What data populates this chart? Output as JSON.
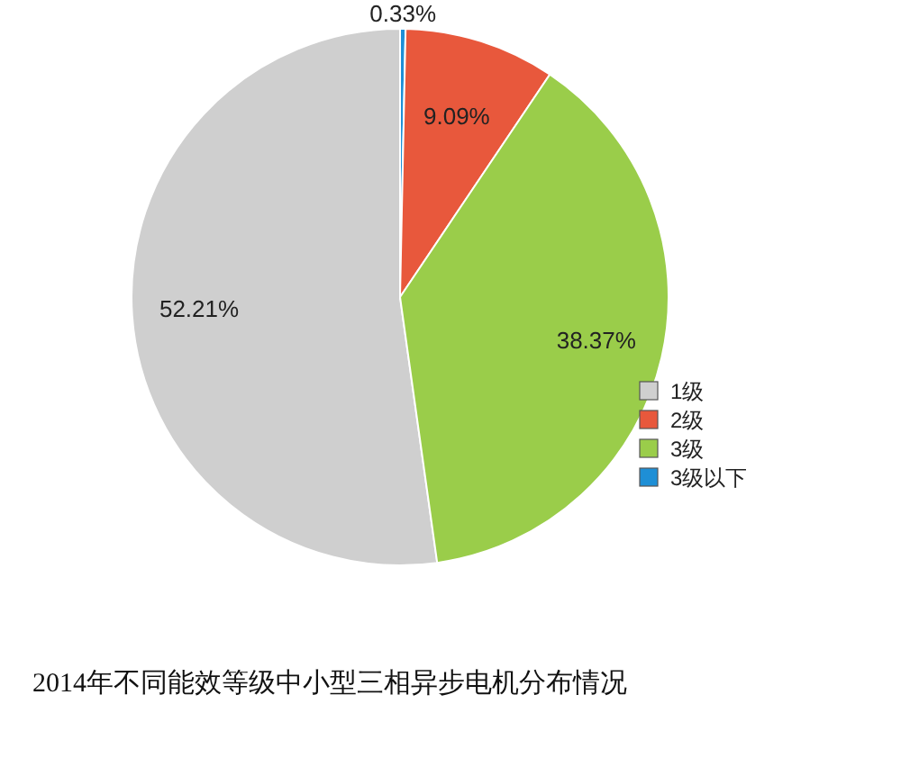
{
  "chart_data": {
    "type": "pie",
    "title": "2014年不同能效等级中小型三相异步电机分布情况",
    "categories": [
      "1级",
      "2级",
      "3级",
      "3级以下"
    ],
    "values": [
      52.21,
      9.09,
      38.37,
      0.33
    ],
    "colors": [
      "#cfcfcf",
      "#e8583c",
      "#9acd4a",
      "#1e8fd6"
    ],
    "value_labels": [
      "52.21%",
      "9.09%",
      "38.37%",
      "0.33%"
    ],
    "legend": "right"
  }
}
